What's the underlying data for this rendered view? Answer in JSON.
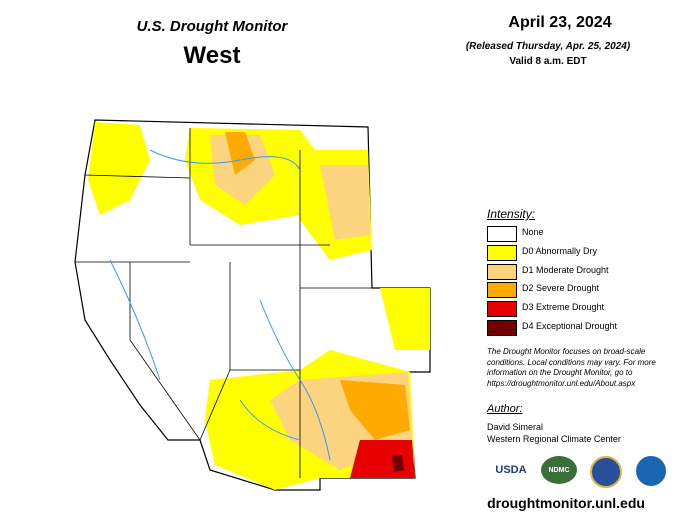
{
  "header": {
    "title": "U.S. Drought Monitor",
    "region": "West",
    "date": "April 23, 2024",
    "released": "(Released Thursday, Apr. 25, 2024)",
    "valid": "Valid 8 a.m. EDT"
  },
  "legend": {
    "title": "Intensity:",
    "items": [
      {
        "label": "None",
        "color": "#ffffff"
      },
      {
        "label": "D0 Abnormally Dry",
        "color": "#ffff00"
      },
      {
        "label": "D1 Moderate Drought",
        "color": "#fcd37f"
      },
      {
        "label": "D2 Severe Drought",
        "color": "#ffaa00"
      },
      {
        "label": "D3 Extreme Drought",
        "color": "#e60000"
      },
      {
        "label": "D4 Exceptional Drought",
        "color": "#730000"
      }
    ]
  },
  "note": [
    "The Drought Monitor focuses on broad-scale",
    "conditions. Local conditions may vary. For more",
    "information on the Drought Monitor, go to",
    "https://droughtmonitor.unl.edu/About.aspx"
  ],
  "author": {
    "title": "Author:",
    "names": [
      "David Simeral",
      "Western Regional Climate Center"
    ]
  },
  "logos": [
    "USDA",
    "NDMC"
  ],
  "url": "droughtmonitor.unl.edu"
}
